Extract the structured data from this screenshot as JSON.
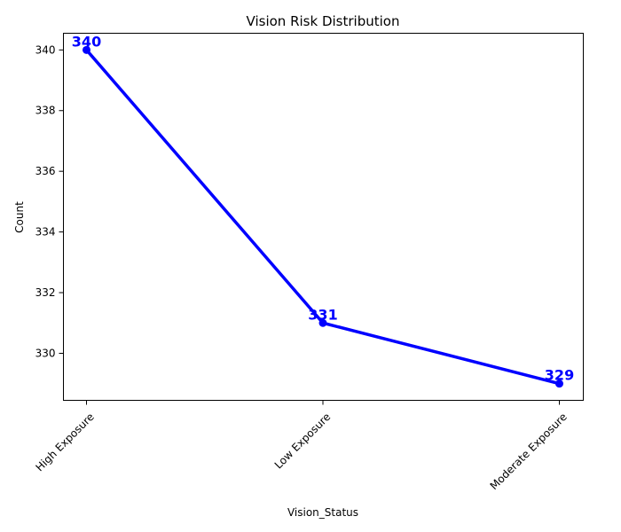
{
  "chart_data": {
    "type": "line",
    "title": "Vision Risk Distribution",
    "xlabel": "Vision_Status",
    "ylabel": "Count",
    "categories": [
      "High Exposure",
      "Low Exposure",
      "Moderate Exposure"
    ],
    "series": [
      {
        "values": [
          340,
          331,
          329
        ],
        "color": "#0000ff"
      }
    ],
    "ylim": [
      328.45,
      340.55
    ],
    "yticks": [
      330,
      332,
      334,
      336,
      338,
      340
    ],
    "grid": false,
    "legend": "none",
    "data_labels": [
      "340",
      "331",
      "329"
    ],
    "x_tick_rotation": 45
  }
}
